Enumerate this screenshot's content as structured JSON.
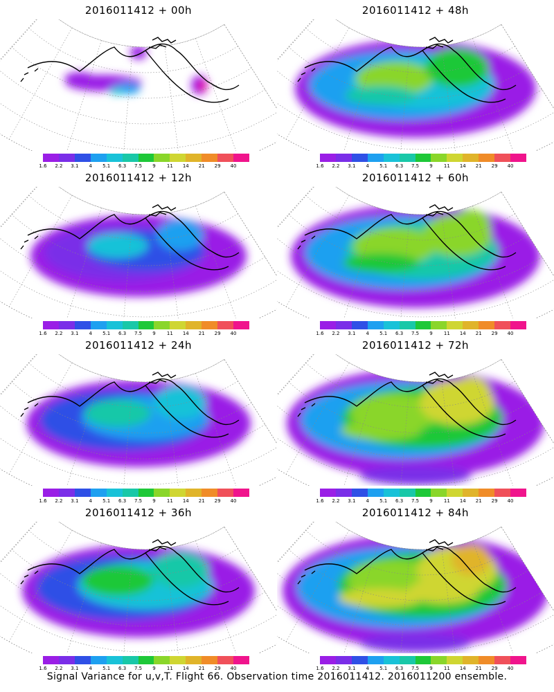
{
  "panels": [
    {
      "title": "2016011412 + 00h",
      "intensity": 0
    },
    {
      "title": "2016011412 + 48h",
      "intensity": 4
    },
    {
      "title": "2016011412 + 12h",
      "intensity": 1
    },
    {
      "title": "2016011412 + 60h",
      "intensity": 5
    },
    {
      "title": "2016011412 + 24h",
      "intensity": 2
    },
    {
      "title": "2016011412 + 72h",
      "intensity": 6
    },
    {
      "title": "2016011412 + 36h",
      "intensity": 3
    },
    {
      "title": "2016011412 + 84h",
      "intensity": 7
    }
  ],
  "colorbar": {
    "colors": [
      "#9a1ee6",
      "#7a2ee8",
      "#2f50e6",
      "#1ea0f0",
      "#19c2d8",
      "#19c8a8",
      "#1ec838",
      "#8ad62a",
      "#cfd632",
      "#e0b42a",
      "#f08c28",
      "#f0505a",
      "#f0148c"
    ],
    "labels": [
      "1.6",
      "2.2",
      "3.1",
      "4",
      "5.1",
      "6.3",
      "7.5",
      "9",
      "11",
      "14",
      "21",
      "29",
      "40"
    ]
  },
  "caption": "Signal Variance for u,v,T. Flight 66. Observation time 2016011412. 2016011200 ensemble."
}
